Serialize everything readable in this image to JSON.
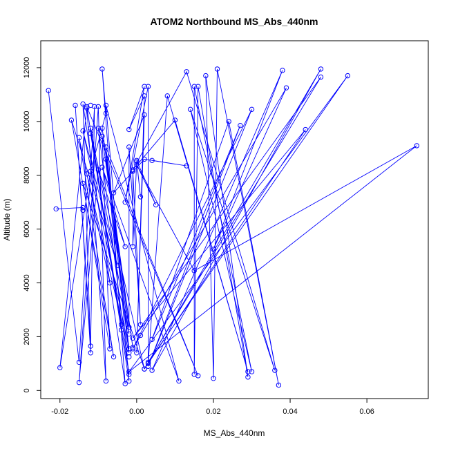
{
  "chart_data": {
    "type": "line",
    "title": "ATOM2 Northbound MS_Abs_440nm",
    "xlabel": "MS_Abs_440nm",
    "ylabel": "Altitude (m)",
    "xlim": [
      -0.025,
      0.076
    ],
    "ylim": [
      -300,
      13000
    ],
    "x_ticks": [
      -0.02,
      0.0,
      0.02,
      0.04,
      0.06
    ],
    "x_tick_labels": [
      "-0.02",
      "0.00",
      "0.02",
      "0.04",
      "0.06"
    ],
    "y_ticks": [
      0,
      2000,
      4000,
      6000,
      8000,
      10000,
      12000
    ],
    "y_tick_labels": [
      "0",
      "2000",
      "4000",
      "6000",
      "8000",
      "10000",
      "12000"
    ],
    "grid": false,
    "marker": "open-circle",
    "series": [
      {
        "color": "#0000ff",
        "points": [
          {
            "x": -0.023,
            "y": 11150
          },
          {
            "x": -0.015,
            "y": 1050
          },
          {
            "x": -0.011,
            "y": 10550
          },
          {
            "x": -0.012,
            "y": 1650
          },
          {
            "x": -0.016,
            "y": 10600
          },
          {
            "x": -0.012,
            "y": 1400
          },
          {
            "x": -0.014,
            "y": 10650
          },
          {
            "x": -0.003,
            "y": 250
          },
          {
            "x": -0.009,
            "y": 11950
          },
          {
            "x": -0.008,
            "y": 10300
          },
          {
            "x": -0.012,
            "y": 8150
          },
          {
            "x": -0.02,
            "y": 850
          },
          {
            "x": -0.013,
            "y": 10500
          },
          {
            "x": -0.008,
            "y": 350
          },
          {
            "x": -0.01,
            "y": 10550
          },
          {
            "x": -0.015,
            "y": 300
          },
          {
            "x": -0.01,
            "y": 8200
          },
          {
            "x": -0.003,
            "y": 5350
          },
          {
            "x": -0.009,
            "y": 8300
          },
          {
            "x": 0.011,
            "y": 350
          },
          {
            "x": -0.008,
            "y": 10600
          },
          {
            "x": -0.002,
            "y": 350
          },
          {
            "x": -0.013,
            "y": 10550
          },
          {
            "x": 0.016,
            "y": 550
          },
          {
            "x": -0.01,
            "y": 9750
          },
          {
            "x": -0.002,
            "y": 600
          },
          {
            "x": -0.012,
            "y": 9550
          },
          {
            "x": 0.002,
            "y": 800
          },
          {
            "x": -0.014,
            "y": 7700
          },
          {
            "x": -0.007,
            "y": 1550
          },
          {
            "x": -0.009,
            "y": 9450
          },
          {
            "x": -0.002,
            "y": 2100
          },
          {
            "x": -0.012,
            "y": 9750
          },
          {
            "x": -0.004,
            "y": 2450
          },
          {
            "x": -0.008,
            "y": 9050
          },
          {
            "x": -0.002,
            "y": 1550
          },
          {
            "x": -0.014,
            "y": 9650
          },
          {
            "x": -0.005,
            "y": 4650
          },
          {
            "x": -0.017,
            "y": 10050
          },
          {
            "x": -0.006,
            "y": 1250
          },
          {
            "x": -0.015,
            "y": 9400
          },
          {
            "x": -0.007,
            "y": 4000
          },
          {
            "x": -0.013,
            "y": 8050
          },
          {
            "x": -0.002,
            "y": 1400
          },
          {
            "x": -0.008,
            "y": 8600
          },
          {
            "x": -0.001,
            "y": 1600
          },
          {
            "x": -0.009,
            "y": 9750
          },
          {
            "x": -0.002,
            "y": 2350
          },
          {
            "x": -0.002,
            "y": 9050
          },
          {
            "x": 0.001,
            "y": 2450
          },
          {
            "x": -0.001,
            "y": 8150
          },
          {
            "x": -0.001,
            "y": 5350
          },
          {
            "x": 0.0,
            "y": 8500
          },
          {
            "x": 0.001,
            "y": 7200
          },
          {
            "x": 0.0,
            "y": 8550
          },
          {
            "x": 0.005,
            "y": 6900
          },
          {
            "x": 0.0,
            "y": 8400
          },
          {
            "x": 0.015,
            "y": 4450
          },
          {
            "x": 0.073,
            "y": 9100
          },
          {
            "x": -0.002,
            "y": 700
          },
          {
            "x": 0.055,
            "y": 11700
          },
          {
            "x": 0.003,
            "y": 1050
          },
          {
            "x": 0.048,
            "y": 11650
          },
          {
            "x": -0.001,
            "y": 1950
          },
          {
            "x": 0.044,
            "y": 9700
          },
          {
            "x": 0.002,
            "y": 800
          },
          {
            "x": 0.048,
            "y": 11950
          },
          {
            "x": 0.004,
            "y": 750
          },
          {
            "x": 0.038,
            "y": 11900
          },
          {
            "x": 0.02,
            "y": 5250
          },
          {
            "x": 0.039,
            "y": 11250
          },
          {
            "x": -0.001,
            "y": 1550
          },
          {
            "x": 0.03,
            "y": 10450
          },
          {
            "x": 0.003,
            "y": 900
          },
          {
            "x": 0.027,
            "y": 9850
          },
          {
            "x": 0.004,
            "y": 1900
          },
          {
            "x": 0.024,
            "y": 10000
          },
          {
            "x": 0.037,
            "y": 200
          },
          {
            "x": 0.021,
            "y": 11950
          },
          {
            "x": 0.02,
            "y": 450
          },
          {
            "x": 0.018,
            "y": 11700
          },
          {
            "x": 0.029,
            "y": 500
          },
          {
            "x": 0.016,
            "y": 11300
          },
          {
            "x": 0.015,
            "y": 600
          },
          {
            "x": 0.015,
            "y": 11300
          },
          {
            "x": 0.03,
            "y": 700
          },
          {
            "x": 0.014,
            "y": 10450
          },
          {
            "x": 0.036,
            "y": 750
          },
          {
            "x": 0.013,
            "y": 11850
          },
          {
            "x": -0.001,
            "y": 8200
          },
          {
            "x": 0.01,
            "y": 10050
          },
          {
            "x": 0.029,
            "y": 700
          },
          {
            "x": 0.008,
            "y": 10950
          },
          {
            "x": 0.003,
            "y": 1000
          },
          {
            "x": 0.003,
            "y": 11300
          },
          {
            "x": -0.003,
            "y": 7000
          },
          {
            "x": 0.002,
            "y": 11300
          },
          {
            "x": -0.002,
            "y": 9700
          },
          {
            "x": 0.002,
            "y": 10950
          },
          {
            "x": 0.0,
            "y": 1400
          },
          {
            "x": 0.002,
            "y": 10250
          },
          {
            "x": -0.006,
            "y": 7350
          },
          {
            "x": 0.002,
            "y": 8600
          },
          {
            "x": 0.013,
            "y": 8350
          },
          {
            "x": 0.004,
            "y": 8550
          }
        ]
      }
    ],
    "extra_points": [
      {
        "x": -0.021,
        "y": 6750
      },
      {
        "x": -0.014,
        "y": 6800
      },
      {
        "x": -0.014,
        "y": 6700
      },
      {
        "x": -0.012,
        "y": 10600
      },
      {
        "x": -0.004,
        "y": 2250
      },
      {
        "x": -0.002,
        "y": 1250
      },
      {
        "x": 0.001,
        "y": 2050
      }
    ],
    "extra_segments": [
      {
        "x1": -0.021,
        "y1": 6750,
        "x2": -0.014,
        "y2": 6800
      },
      {
        "x1": -0.014,
        "y1": 6800,
        "x2": -0.014,
        "y2": 6700
      }
    ]
  }
}
